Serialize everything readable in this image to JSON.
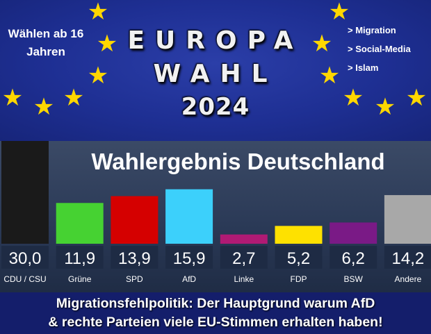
{
  "banner": {
    "age_note": "Wählen ab 16 Jahren",
    "topics": [
      "> Migration",
      "> Social-Media",
      "> Islam"
    ],
    "headline": [
      "EUROPA",
      "WAHL",
      "2024"
    ],
    "star_icon": "star-icon",
    "star_color": "#ffd700"
  },
  "caption": {
    "line1": "Migrationsfehlpolitik: Der Hauptgrund warum AfD",
    "line2": "& rechte Parteien viele EU-Stimmen erhalten haben!"
  },
  "chart_data": {
    "type": "bar",
    "title": "Wahlergebnis Deutschland",
    "categories": [
      "CDU / CSU",
      "Grüne",
      "SPD",
      "AfD",
      "Linke",
      "FDP",
      "BSW",
      "Andere"
    ],
    "values": [
      30.0,
      11.9,
      13.9,
      15.9,
      2.7,
      5.2,
      6.2,
      14.2
    ],
    "value_labels": [
      "30,0",
      "11,9",
      "13,9",
      "15,9",
      "2,7",
      "5,2",
      "6,2",
      "14,2"
    ],
    "colors": [
      "#1a1a1a",
      "#46d232",
      "#d50000",
      "#3cd0fb",
      "#b01a74",
      "#fee100",
      "#7a1a86",
      "#a8a8a8"
    ],
    "xlabel": "",
    "ylabel": "",
    "ylim": [
      0,
      30
    ],
    "grid": false,
    "legend": "none"
  }
}
